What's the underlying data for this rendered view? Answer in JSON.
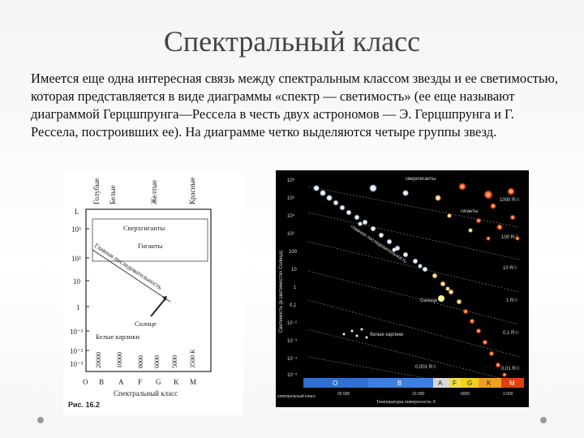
{
  "slide": {
    "title": "Спектральный класс",
    "paragraph": "Имеется еще одна интересная связь между спектральным классом звезды и ее светимостью, которая представляется в виде диаграммы «спектр — светимость» (ее еще называют диаграммой Герцшпрунга—Рессела в честь двух астрономов — Э. Герцшпрунга и Г. Рессела, построивших ее). На диаграмме четко выделяются четыре группы звезд."
  },
  "left_diagram": {
    "color_labels": [
      "Голубые",
      "Белые",
      "Желтые",
      "Красные"
    ],
    "y_ticks": [
      "L",
      "10³",
      "10²",
      "10",
      "1",
      "10⁻¹",
      "10⁻²",
      "10⁻³"
    ],
    "groups": {
      "supergiants": "Сверхгиганты",
      "giants": "Гиганты",
      "main_sequence": "Главная последовательность",
      "sun": "Солнце",
      "white_dwarfs": "Белые карлики"
    },
    "temperatures": [
      "20000",
      "10000",
      "8000",
      "6000",
      "5000",
      "3500 К"
    ],
    "spectral_classes": [
      "O",
      "B",
      "A",
      "F",
      "G",
      "K",
      "M"
    ],
    "x_axis_label": "Спектральный класс",
    "figure_caption": "Рис. 16.2"
  },
  "right_diagram": {
    "y_ticks": [
      "10⁶",
      "10⁵",
      "10⁴",
      "10³",
      "100",
      "10",
      "1",
      "0,1",
      "10⁻²",
      "10⁻³",
      "10⁻⁴",
      "10⁻⁵"
    ],
    "y_axis_label": "Светимость (в светимостях Солнца)",
    "regions": {
      "supergiants": "сверхгиганты",
      "giants": "гиганты",
      "main_sequence": "главная последовательность",
      "sun": "Солнце",
      "white_dwarfs": "белые карлики"
    },
    "radius_labels": [
      "1000 R☉",
      "100 R☉",
      "10 R☉",
      "1 R☉",
      "0,1 R☉",
      "0,01 R☉",
      "0,001 R☉"
    ],
    "spectral_classes": [
      "O",
      "B",
      "A",
      "F",
      "G",
      "K",
      "M"
    ],
    "class_colors": [
      "#2f6fd0",
      "#2f6fd0",
      "#d8d8d8",
      "#f0e040",
      "#f0d020",
      "#f0a020",
      "#e04010"
    ],
    "x_label_left": "спектральный класс",
    "x_ticks": [
      "30 000",
      "10 000",
      "6000",
      "3 000"
    ],
    "x_axis_label": "Температура поверхности, К"
  }
}
